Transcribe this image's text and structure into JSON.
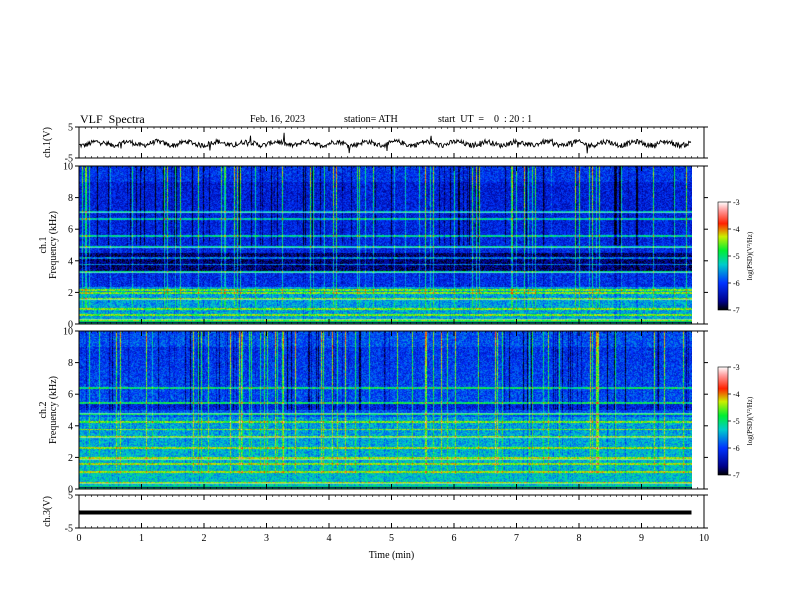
{
  "header": {
    "title": "VLF  Spectra",
    "date": "Feb. 16, 2023",
    "station": "station= ATH",
    "start_ut": "start  UT  =    0  : 20 : 1"
  },
  "chart_data": [
    {
      "type": "line",
      "panel": "ch1-waveform",
      "ylabel": "ch.1(V)",
      "y_ticks": [
        "5",
        "-5"
      ],
      "ylim": [
        -5,
        5
      ],
      "x_range_min": [
        0,
        9.8
      ],
      "line_color": "#000000"
    },
    {
      "type": "heatmap",
      "panel": "ch1-spectrogram",
      "ylabel": "ch.1\nFrequency (kHz)",
      "ylabel_lines": [
        "ch.1",
        "Frequency (kHz)"
      ],
      "y_ticks": [
        "0",
        "2",
        "4",
        "6",
        "8",
        "10"
      ],
      "ylim_khz": [
        0,
        10
      ],
      "x_range_min": [
        0,
        9.8
      ],
      "colorbar": {
        "label": "log(PSD)(V²/Hz)",
        "ticks": [
          "-3",
          "-4",
          "-5",
          "-6",
          "-7"
        ],
        "range": [
          -7,
          -3
        ]
      },
      "notable_bands_khz": [
        0.3,
        0.6,
        1.0,
        1.6,
        2.0,
        2.2,
        3.3,
        3.8,
        4.2,
        4.9,
        5.6,
        6.7,
        7.1
      ],
      "quiet_band_khz": [
        3.4,
        4.5
      ]
    },
    {
      "type": "heatmap",
      "panel": "ch2-spectrogram",
      "ylabel": "ch.2\nFrequency (kHz)",
      "ylabel_lines": [
        "ch.2",
        "Frequency (kHz)"
      ],
      "y_ticks": [
        "0",
        "2",
        "4",
        "6",
        "8",
        "10"
      ],
      "ylim_khz": [
        0,
        10
      ],
      "x_range_min": [
        0,
        9.8
      ],
      "colorbar": {
        "label": "log(PSD)(V²/Hz)",
        "ticks": [
          "-3",
          "-4",
          "-5",
          "-6",
          "-7"
        ],
        "range": [
          -7,
          -3
        ]
      },
      "notable_bands_khz": [
        0.4,
        1.1,
        1.6,
        1.9,
        2.0,
        2.6,
        3.3,
        3.8,
        4.3,
        4.8,
        5.5,
        6.4
      ],
      "quiet_band_khz": [
        5.0,
        5.4
      ]
    },
    {
      "type": "line",
      "panel": "ch3-waveform",
      "ylabel": "ch.3(V)",
      "y_ticks": [
        "5",
        "-5"
      ],
      "ylim": [
        -5,
        5
      ],
      "x_range_min": [
        0,
        9.8
      ],
      "constant_value": 0,
      "line_color": "#000000"
    }
  ],
  "x_axis": {
    "label": "Time  (min)",
    "ticks": [
      "0",
      "1",
      "2",
      "3",
      "4",
      "5",
      "6",
      "7",
      "8",
      "9",
      "10"
    ],
    "xlim": [
      0,
      10
    ]
  }
}
